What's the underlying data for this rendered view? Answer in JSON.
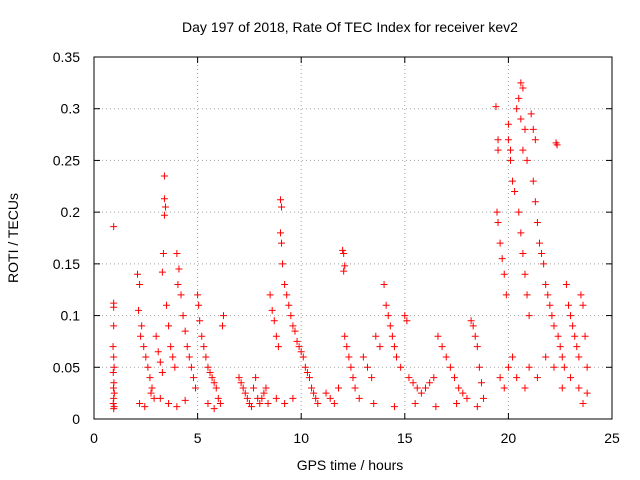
{
  "chart_data": {
    "type": "scatter",
    "title": "Day 197 of 2018, Rate Of TEC Index for receiver kev2",
    "xlabel": "GPS time / hours",
    "ylabel": "ROTI / TECUs",
    "xlim": [
      0,
      25
    ],
    "ylim": [
      0,
      0.35
    ],
    "xticks": [
      0,
      5,
      10,
      15,
      20,
      25
    ],
    "xtick_labels": [
      "0",
      "5",
      "10",
      "15",
      "20",
      "25"
    ],
    "yticks": [
      0,
      0.05,
      0.1,
      0.15,
      0.2,
      0.25,
      0.3,
      0.35
    ],
    "ytick_labels": [
      "0",
      "0.05",
      "0.1",
      "0.15",
      "0.2",
      "0.25",
      "0.3",
      "0.35"
    ],
    "grid": true,
    "marker": "+",
    "color": "#ff0000",
    "series": [
      {
        "name": "ROTI",
        "points": [
          [
            0.95,
            0.186
          ],
          [
            0.95,
            0.112
          ],
          [
            0.95,
            0.108
          ],
          [
            0.95,
            0.09
          ],
          [
            0.92,
            0.07
          ],
          [
            0.95,
            0.06
          ],
          [
            0.97,
            0.05
          ],
          [
            0.93,
            0.045
          ],
          [
            0.96,
            0.035
          ],
          [
            0.94,
            0.03
          ],
          [
            0.98,
            0.025
          ],
          [
            0.95,
            0.02
          ],
          [
            0.93,
            0.015
          ],
          [
            0.97,
            0.012
          ],
          [
            0.95,
            0.01
          ],
          [
            2.1,
            0.14
          ],
          [
            2.2,
            0.13
          ],
          [
            2.15,
            0.105
          ],
          [
            2.3,
            0.09
          ],
          [
            2.25,
            0.08
          ],
          [
            2.4,
            0.07
          ],
          [
            2.5,
            0.06
          ],
          [
            2.6,
            0.05
          ],
          [
            2.7,
            0.04
          ],
          [
            2.8,
            0.03
          ],
          [
            2.9,
            0.02
          ],
          [
            2.2,
            0.015
          ],
          [
            2.45,
            0.012
          ],
          [
            2.75,
            0.025
          ],
          [
            3.0,
            0.08
          ],
          [
            3.1,
            0.065
          ],
          [
            3.2,
            0.055
          ],
          [
            3.3,
            0.045
          ],
          [
            3.4,
            0.235
          ],
          [
            3.4,
            0.213
          ],
          [
            3.45,
            0.205
          ],
          [
            3.4,
            0.197
          ],
          [
            3.35,
            0.16
          ],
          [
            3.3,
            0.142
          ],
          [
            3.5,
            0.11
          ],
          [
            3.6,
            0.09
          ],
          [
            3.7,
            0.07
          ],
          [
            3.8,
            0.06
          ],
          [
            3.9,
            0.05
          ],
          [
            4.0,
            0.16
          ],
          [
            4.1,
            0.145
          ],
          [
            4.05,
            0.13
          ],
          [
            4.2,
            0.12
          ],
          [
            4.3,
            0.1
          ],
          [
            4.4,
            0.085
          ],
          [
            4.5,
            0.07
          ],
          [
            4.6,
            0.06
          ],
          [
            4.7,
            0.05
          ],
          [
            4.8,
            0.04
          ],
          [
            4.9,
            0.03
          ],
          [
            3.2,
            0.02
          ],
          [
            3.6,
            0.015
          ],
          [
            4.0,
            0.012
          ],
          [
            4.4,
            0.018
          ],
          [
            5.0,
            0.12
          ],
          [
            5.05,
            0.11
          ],
          [
            5.1,
            0.095
          ],
          [
            5.2,
            0.08
          ],
          [
            5.3,
            0.07
          ],
          [
            5.4,
            0.06
          ],
          [
            5.5,
            0.05
          ],
          [
            5.6,
            0.045
          ],
          [
            5.7,
            0.04
          ],
          [
            5.8,
            0.035
          ],
          [
            5.9,
            0.03
          ],
          [
            6.0,
            0.02
          ],
          [
            6.1,
            0.015
          ],
          [
            6.25,
            0.1
          ],
          [
            6.2,
            0.09
          ],
          [
            5.5,
            0.015
          ],
          [
            5.8,
            0.01
          ],
          [
            7.0,
            0.04
          ],
          [
            7.1,
            0.035
          ],
          [
            7.2,
            0.03
          ],
          [
            7.3,
            0.025
          ],
          [
            7.4,
            0.02
          ],
          [
            7.5,
            0.015
          ],
          [
            7.6,
            0.012
          ],
          [
            7.7,
            0.03
          ],
          [
            7.8,
            0.04
          ],
          [
            7.9,
            0.02
          ],
          [
            8.0,
            0.015
          ],
          [
            8.1,
            0.02
          ],
          [
            8.2,
            0.025
          ],
          [
            8.3,
            0.03
          ],
          [
            8.4,
            0.015
          ],
          [
            8.5,
            0.12
          ],
          [
            8.6,
            0.105
          ],
          [
            8.7,
            0.095
          ],
          [
            8.8,
            0.08
          ],
          [
            8.9,
            0.07
          ],
          [
            9.0,
            0.212
          ],
          [
            9.05,
            0.205
          ],
          [
            9.0,
            0.18
          ],
          [
            9.05,
            0.17
          ],
          [
            9.1,
            0.15
          ],
          [
            9.2,
            0.13
          ],
          [
            9.3,
            0.12
          ],
          [
            9.4,
            0.11
          ],
          [
            9.5,
            0.1
          ],
          [
            9.6,
            0.09
          ],
          [
            9.7,
            0.085
          ],
          [
            9.8,
            0.075
          ],
          [
            9.9,
            0.07
          ],
          [
            10.0,
            0.065
          ],
          [
            10.1,
            0.06
          ],
          [
            10.2,
            0.05
          ],
          [
            10.3,
            0.045
          ],
          [
            10.4,
            0.04
          ],
          [
            10.5,
            0.03
          ],
          [
            10.6,
            0.025
          ],
          [
            10.7,
            0.02
          ],
          [
            10.8,
            0.015
          ],
          [
            8.8,
            0.02
          ],
          [
            9.2,
            0.015
          ],
          [
            9.6,
            0.02
          ],
          [
            11.2,
            0.025
          ],
          [
            11.4,
            0.02
          ],
          [
            11.6,
            0.015
          ],
          [
            11.8,
            0.03
          ],
          [
            12.0,
            0.163
          ],
          [
            12.05,
            0.16
          ],
          [
            12.1,
            0.148
          ],
          [
            12.05,
            0.143
          ],
          [
            12.1,
            0.08
          ],
          [
            12.2,
            0.07
          ],
          [
            12.3,
            0.06
          ],
          [
            12.4,
            0.05
          ],
          [
            12.5,
            0.04
          ],
          [
            12.6,
            0.03
          ],
          [
            12.8,
            0.02
          ],
          [
            13.0,
            0.06
          ],
          [
            13.2,
            0.05
          ],
          [
            13.4,
            0.04
          ],
          [
            13.6,
            0.08
          ],
          [
            13.8,
            0.07
          ],
          [
            14.0,
            0.13
          ],
          [
            14.1,
            0.11
          ],
          [
            14.2,
            0.1
          ],
          [
            14.3,
            0.09
          ],
          [
            14.4,
            0.08
          ],
          [
            14.5,
            0.07
          ],
          [
            14.6,
            0.06
          ],
          [
            14.8,
            0.05
          ],
          [
            15.0,
            0.1
          ],
          [
            15.1,
            0.095
          ],
          [
            15.2,
            0.04
          ],
          [
            15.4,
            0.035
          ],
          [
            15.6,
            0.03
          ],
          [
            15.8,
            0.025
          ],
          [
            16.0,
            0.03
          ],
          [
            16.2,
            0.035
          ],
          [
            16.4,
            0.04
          ],
          [
            16.6,
            0.08
          ],
          [
            16.8,
            0.07
          ],
          [
            17.0,
            0.06
          ],
          [
            17.2,
            0.05
          ],
          [
            17.4,
            0.04
          ],
          [
            17.6,
            0.03
          ],
          [
            17.8,
            0.025
          ],
          [
            18.0,
            0.02
          ],
          [
            18.2,
            0.095
          ],
          [
            18.3,
            0.09
          ],
          [
            18.4,
            0.08
          ],
          [
            18.5,
            0.07
          ],
          [
            18.6,
            0.05
          ],
          [
            18.7,
            0.035
          ],
          [
            18.8,
            0.02
          ],
          [
            13.5,
            0.015
          ],
          [
            14.5,
            0.012
          ],
          [
            15.5,
            0.015
          ],
          [
            16.5,
            0.012
          ],
          [
            17.5,
            0.015
          ],
          [
            18.5,
            0.012
          ],
          [
            19.4,
            0.302
          ],
          [
            19.5,
            0.27
          ],
          [
            19.5,
            0.26
          ],
          [
            19.45,
            0.2
          ],
          [
            19.5,
            0.19
          ],
          [
            19.6,
            0.17
          ],
          [
            19.7,
            0.155
          ],
          [
            19.8,
            0.14
          ],
          [
            19.9,
            0.12
          ],
          [
            20.0,
            0.285
          ],
          [
            20.0,
            0.27
          ],
          [
            20.1,
            0.26
          ],
          [
            20.1,
            0.25
          ],
          [
            20.2,
            0.23
          ],
          [
            20.3,
            0.22
          ],
          [
            20.4,
            0.3
          ],
          [
            20.5,
            0.31
          ],
          [
            20.6,
            0.325
          ],
          [
            20.7,
            0.32
          ],
          [
            20.6,
            0.29
          ],
          [
            20.8,
            0.28
          ],
          [
            20.7,
            0.26
          ],
          [
            20.9,
            0.25
          ],
          [
            20.5,
            0.2
          ],
          [
            20.6,
            0.18
          ],
          [
            20.7,
            0.16
          ],
          [
            20.8,
            0.14
          ],
          [
            20.9,
            0.12
          ],
          [
            21.0,
            0.1
          ],
          [
            21.1,
            0.295
          ],
          [
            21.2,
            0.28
          ],
          [
            21.3,
            0.27
          ],
          [
            21.2,
            0.23
          ],
          [
            21.3,
            0.21
          ],
          [
            21.4,
            0.19
          ],
          [
            21.5,
            0.17
          ],
          [
            21.6,
            0.16
          ],
          [
            21.7,
            0.15
          ],
          [
            21.8,
            0.13
          ],
          [
            21.9,
            0.12
          ],
          [
            22.0,
            0.11
          ],
          [
            22.1,
            0.1
          ],
          [
            22.2,
            0.09
          ],
          [
            22.3,
            0.267
          ],
          [
            22.35,
            0.265
          ],
          [
            22.4,
            0.08
          ],
          [
            22.5,
            0.07
          ],
          [
            22.6,
            0.06
          ],
          [
            22.7,
            0.05
          ],
          [
            22.8,
            0.13
          ],
          [
            22.9,
            0.11
          ],
          [
            23.0,
            0.1
          ],
          [
            23.1,
            0.09
          ],
          [
            23.2,
            0.08
          ],
          [
            23.3,
            0.07
          ],
          [
            23.4,
            0.06
          ],
          [
            23.5,
            0.12
          ],
          [
            23.6,
            0.11
          ],
          [
            23.7,
            0.08
          ],
          [
            23.8,
            0.05
          ],
          [
            19.6,
            0.04
          ],
          [
            19.8,
            0.03
          ],
          [
            20.0,
            0.05
          ],
          [
            20.2,
            0.06
          ],
          [
            20.4,
            0.04
          ],
          [
            20.8,
            0.03
          ],
          [
            21.0,
            0.05
          ],
          [
            21.4,
            0.04
          ],
          [
            21.8,
            0.06
          ],
          [
            22.2,
            0.05
          ],
          [
            22.6,
            0.03
          ],
          [
            23.0,
            0.04
          ],
          [
            23.4,
            0.03
          ],
          [
            23.6,
            0.015
          ],
          [
            23.8,
            0.025
          ]
        ]
      }
    ]
  }
}
